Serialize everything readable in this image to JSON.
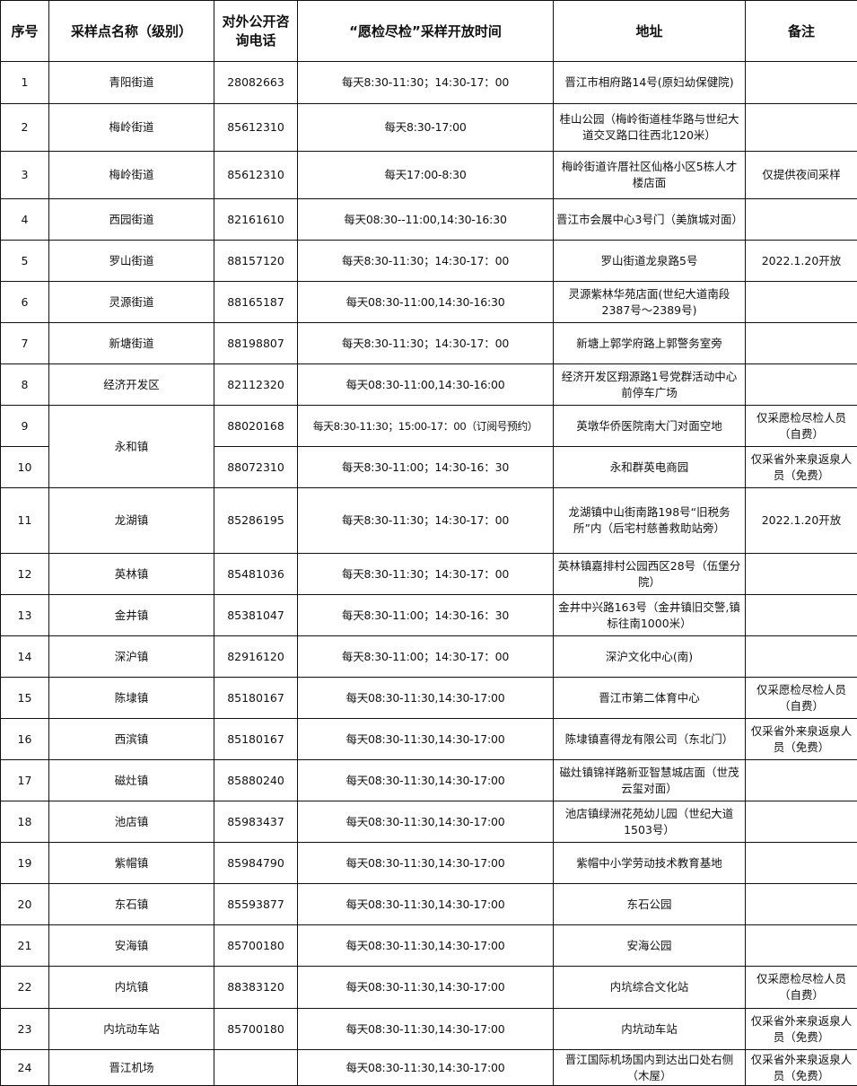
{
  "headers": [
    "序号",
    "采样点名称（级别）",
    "对外公开咨询电话",
    "“愿检尽检”采样开放时间",
    "地址",
    "备注"
  ],
  "rows": [
    {
      "no": "1",
      "name": "青阳街道",
      "phone": "28082663",
      "time": "每天8:30-11:30；14:30-17：00",
      "address": "晋江市相府路14号(原妇幼保健院)",
      "note": ""
    },
    {
      "no": "2",
      "name": "梅岭街道",
      "phone": "85612310",
      "time": "每天8:30-17:00",
      "address": "桂山公园（梅岭街道桂华路与世纪大道交叉路口往西北120米）",
      "note": ""
    },
    {
      "no": "3",
      "name": "梅岭街道",
      "phone": "85612310",
      "time": "每天17:00-8:30",
      "address": "梅岭街道许厝社区仙格小区5栋人才楼店面",
      "note": "仅提供夜间采样"
    },
    {
      "no": "4",
      "name": "西园街道",
      "phone": "82161610",
      "time": "每天08:30--11:00,14:30-16:30",
      "address": "晋江市会展中心3号门（美旗城对面）",
      "note": ""
    },
    {
      "no": "5",
      "name": "罗山街道",
      "phone": "88157120",
      "time": "每天8:30-11:30；14:30-17：00",
      "address": "罗山街道龙泉路5号",
      "note": "2022.1.20开放"
    },
    {
      "no": "6",
      "name": "灵源街道",
      "phone": "88165187",
      "time": "每天08:30-11:00,14:30-16:30",
      "address": "灵源紫林华苑店面(世纪大道南段2387号～2389号)",
      "note": ""
    },
    {
      "no": "7",
      "name": "新塘街道",
      "phone": "88198807",
      "time": "每天8:30-11:30；14:30-17：00",
      "address": "新塘上郭学府路上郭警务室旁",
      "note": ""
    },
    {
      "no": "8",
      "name": "经济开发区",
      "phone": "82112320",
      "time": "每天08:30-11:00,14:30-16:00",
      "address": "经济开发区翔源路1号党群活动中心前停车广场",
      "note": ""
    },
    {
      "no": "9",
      "name": "永和镇",
      "phone": "88020168",
      "time": "每天8:30-11:30；15:00-17：00（订阅号预约）",
      "address": "英墩华侨医院南大门对面空地",
      "note": "仅采愿检尽检人员（自费）"
    },
    {
      "no": "10",
      "name": "",
      "phone": "88072310",
      "time": "每天8:30-11:00；14:30-16：30",
      "address": "永和群英电商园",
      "note": "仅采省外来泉返泉人员（免费）"
    },
    {
      "no": "11",
      "name": "龙湖镇",
      "phone": "85286195",
      "time": "每天8:30-11:30；14:30-17：00",
      "address": "龙湖镇中山街南路198号“旧税务所”内（后宅村慈善救助站旁）",
      "note": "2022.1.20开放"
    },
    {
      "no": "12",
      "name": "英林镇",
      "phone": "85481036",
      "time": "每天8:30-11:30；14:30-17：00",
      "address": "英林镇嘉排村公园西区28号（伍堡分院）",
      "note": ""
    },
    {
      "no": "13",
      "name": "金井镇",
      "phone": "85381047",
      "time": "每天8:30-11:00；14:30-16：30",
      "address": "金井中兴路163号（金井镇旧交警,镇标往南1000米）",
      "note": ""
    },
    {
      "no": "14",
      "name": "深沪镇",
      "phone": "82916120",
      "time": "每天8:30-11:00；14:30-17：00",
      "address": "深沪文化中心(南)",
      "note": ""
    },
    {
      "no": "15",
      "name": "陈埭镇",
      "phone": "85180167",
      "time": "每天08:30-11:30,14:30-17:00",
      "address": "晋江市第二体育中心",
      "note": "仅采愿检尽检人员（自费）"
    },
    {
      "no": "16",
      "name": "西滨镇",
      "phone": "85180167",
      "time": "每天08:30-11:30,14:30-17:00",
      "address": "陈埭镇喜得龙有限公司（东北门）",
      "note": "仅采省外来泉返泉人员（免费）"
    },
    {
      "no": "17",
      "name": "磁灶镇",
      "phone": "85880240",
      "time": "每天08:30-11:30,14:30-17:00",
      "address": "磁灶镇锦祥路新亚智慧城店面（世茂云玺对面）",
      "note": ""
    },
    {
      "no": "18",
      "name": "池店镇",
      "phone": "85983437",
      "time": "每天08:30-11:30,14:30-17:00",
      "address": "池店镇绿洲花苑幼儿园（世纪大道1503号）",
      "note": ""
    },
    {
      "no": "19",
      "name": "紫帽镇",
      "phone": "85984790",
      "time": "每天08:30-11:30,14:30-17:00",
      "address": "紫帽中小学劳动技术教育基地",
      "note": ""
    },
    {
      "no": "20",
      "name": "东石镇",
      "phone": "85593877",
      "time": "每天08:30-11:30,14:30-17:00",
      "address": "东石公园",
      "note": ""
    },
    {
      "no": "21",
      "name": "安海镇",
      "phone": "85700180",
      "time": "每天08:30-11:30,14:30-17:00",
      "address": "安海公园",
      "note": ""
    },
    {
      "no": "22",
      "name": "内坑镇",
      "phone": "88383120",
      "time": "每天08:30-11:30,14:30-17:00",
      "address": "内坑综合文化站",
      "note": "仅采愿检尽检人员（自费）"
    },
    {
      "no": "23",
      "name": "内坑动车站",
      "phone": "85700180",
      "time": "每天08:30-11:30,14:30-17:00",
      "address": "内坑动车站",
      "note": "仅采省外来泉返泉人员（免费）"
    },
    {
      "no": "24",
      "name": "晋江机场",
      "phone": "",
      "time": "每天08:30-11:30,14:30-17:00",
      "address": "晋江国际机场国内到达出口处右侧（木屋）",
      "note": "仅采省外来泉返泉人员（免费）"
    }
  ]
}
